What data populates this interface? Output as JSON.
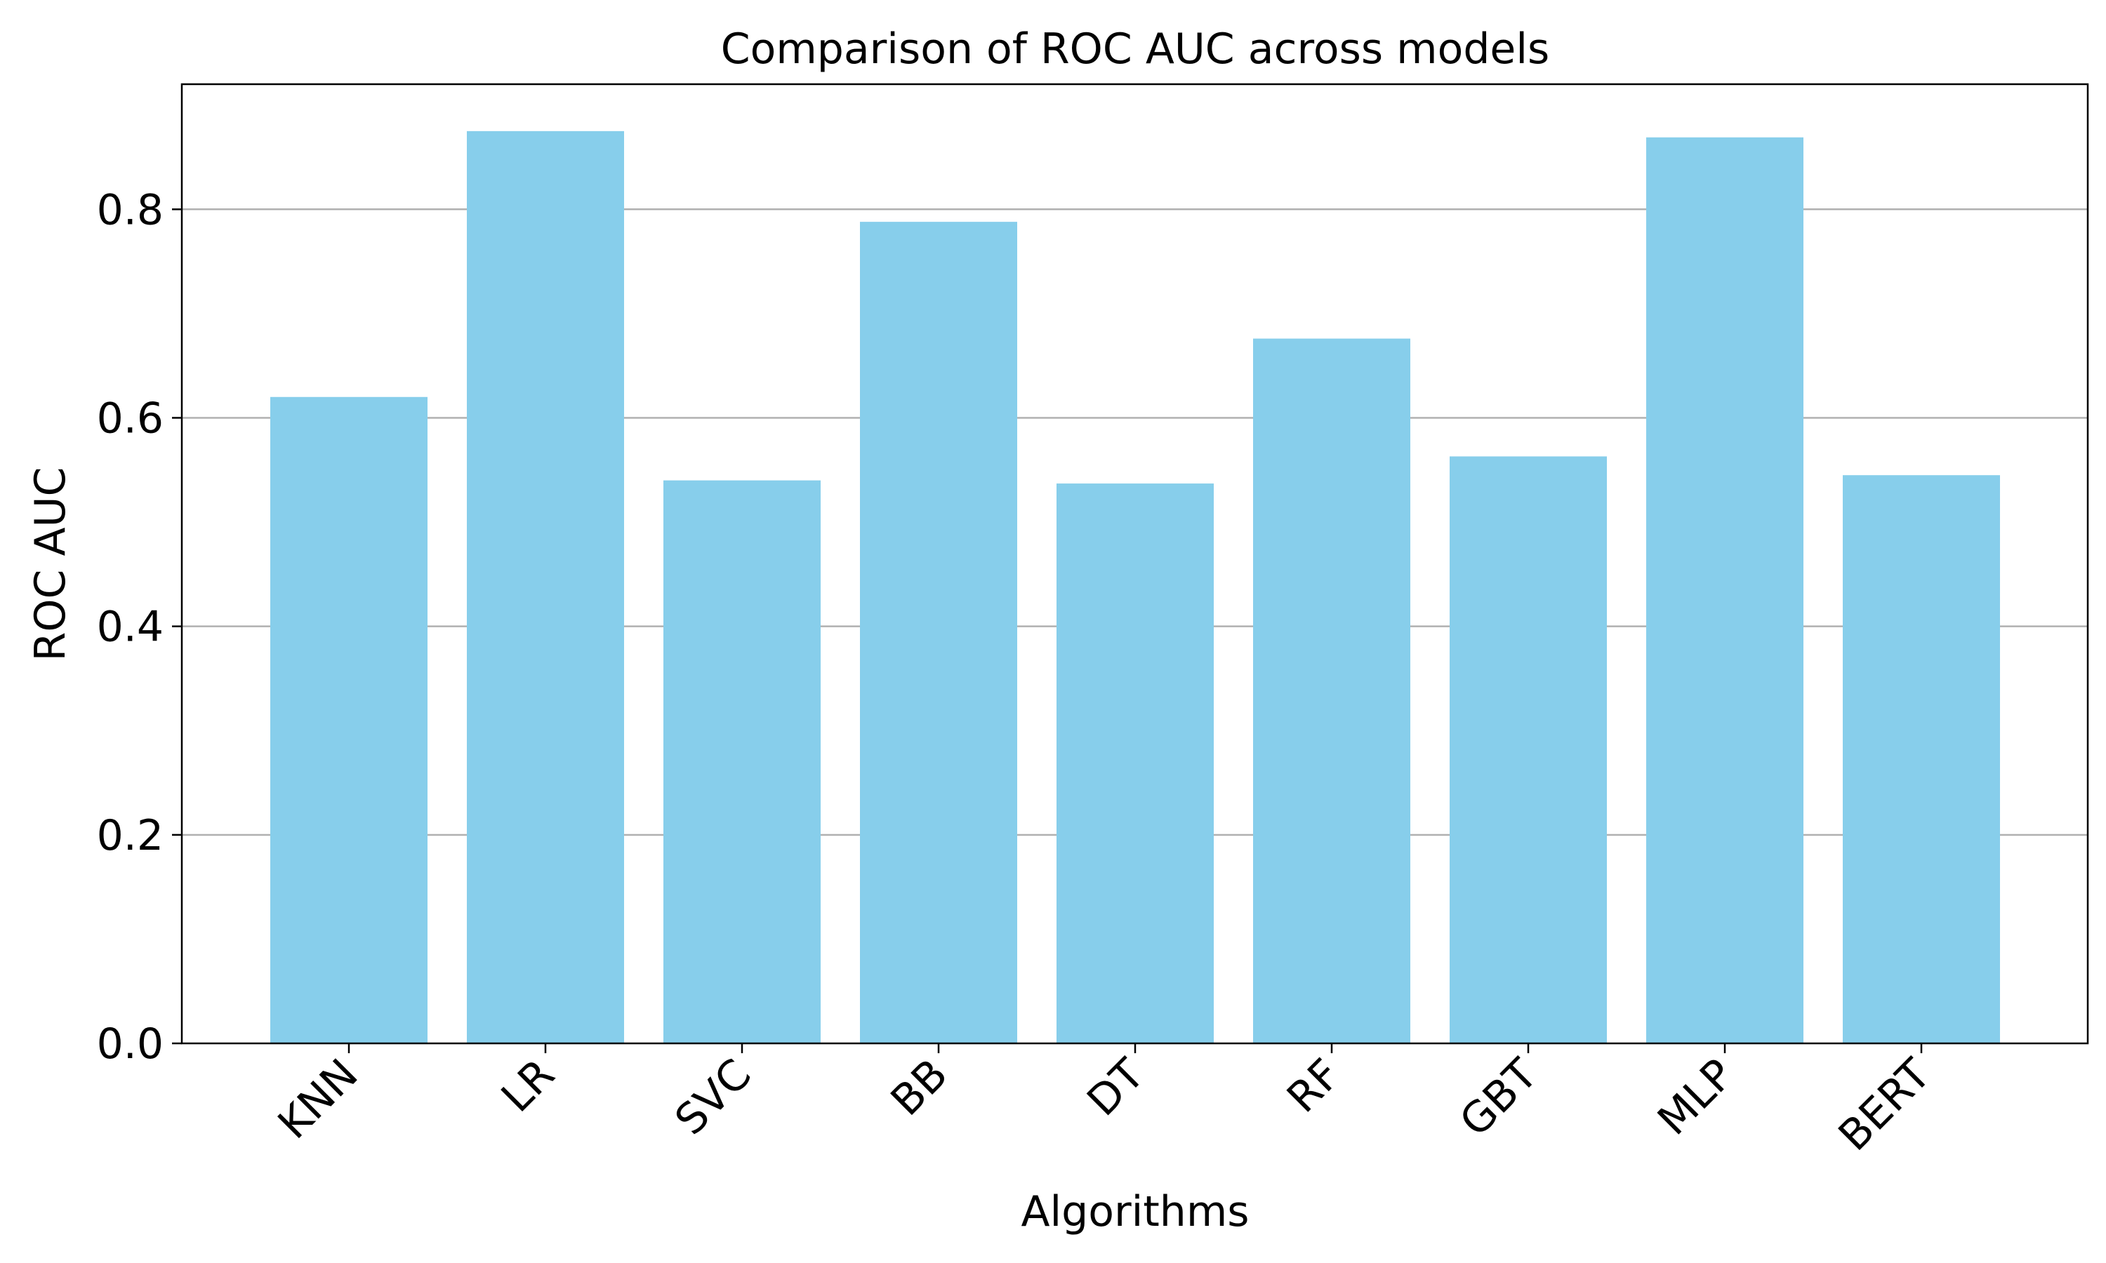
{
  "chart_data": {
    "type": "bar",
    "title": "Comparison of ROC AUC across models",
    "xlabel": "Algorithms",
    "ylabel": "ROC AUC",
    "categories": [
      "KNN",
      "LR",
      "SVC",
      "BB",
      "DT",
      "RF",
      "GBT",
      "MLP",
      "BERT"
    ],
    "values": [
      0.62,
      0.875,
      0.54,
      0.788,
      0.537,
      0.676,
      0.563,
      0.869,
      0.545
    ],
    "ylim": [
      0,
      0.92
    ],
    "yticks": [
      0.0,
      0.2,
      0.4,
      0.6,
      0.8
    ],
    "ytick_labels": [
      "0.0",
      "0.2",
      "0.4",
      "0.6",
      "0.8"
    ],
    "grid": "y",
    "bar_color": "#87CEEB",
    "legend": "none"
  }
}
